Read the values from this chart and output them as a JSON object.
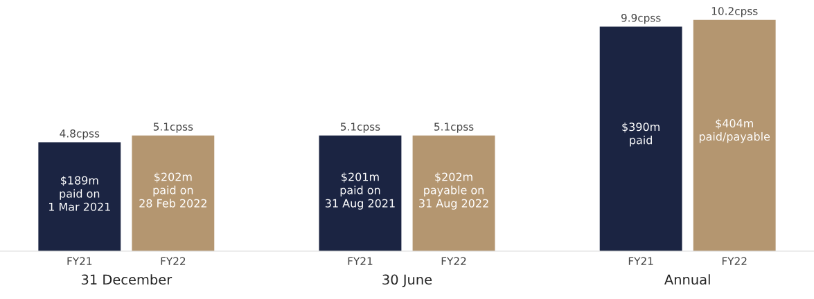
{
  "chart_data": {
    "type": "bar",
    "categories": [
      "FY21",
      "FY22",
      null,
      "FY21",
      "FY22",
      null,
      "FY21",
      "FY22"
    ],
    "values": [
      4.8,
      5.1,
      null,
      5.1,
      5.1,
      null,
      9.9,
      10.2
    ],
    "colors": [
      "#1b2442",
      "#b49670",
      null,
      "#1b2442",
      "#b49670",
      null,
      "#1b2442",
      "#b49670"
    ],
    "value_labels": [
      "4.8cpss",
      "5.1cpss",
      null,
      "5.1cpss",
      "5.1cpss",
      null,
      "9.9cpss",
      "10.2cpss"
    ],
    "annotations": [
      "$189m\npaid on\n1 Mar 2021",
      "$202m\npaid on\n28 Feb 2022",
      null,
      "$201m\npaid on\n31 Aug 2021",
      "$202m\npayable on\n31 Aug 2022",
      null,
      "$390m\npaid",
      "$404m\npaid/payable",
      "31 December",
      "30 June",
      "Annual"
    ],
    "grid": false,
    "legend": false
  }
}
